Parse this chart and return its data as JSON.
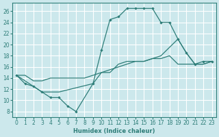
{
  "background_color": "#cce8ec",
  "grid_color": "#ffffff",
  "line_color": "#2d7d78",
  "xlabel": "Humidex (Indice chaleur)",
  "xlim": [
    -0.5,
    23.5
  ],
  "ylim": [
    7,
    27.5
  ],
  "xticks": [
    0,
    1,
    2,
    3,
    4,
    5,
    6,
    7,
    8,
    9,
    10,
    11,
    12,
    13,
    14,
    15,
    16,
    17,
    18,
    19,
    20,
    21,
    22,
    23
  ],
  "yticks": [
    8,
    10,
    12,
    14,
    16,
    18,
    20,
    22,
    24,
    26
  ],
  "line1_x": [
    0,
    1,
    2,
    3,
    4,
    5,
    6,
    7,
    9,
    10,
    11,
    12,
    13,
    14,
    15,
    16,
    17,
    18,
    19,
    20,
    21,
    22,
    23
  ],
  "line1_y": [
    14.5,
    13.0,
    12.5,
    11.5,
    10.5,
    10.5,
    9.0,
    8.0,
    13.0,
    19.0,
    24.5,
    25.0,
    26.5,
    26.5,
    26.5,
    26.5,
    24.0,
    24.0,
    21.0,
    18.5,
    16.5,
    17.0,
    17.0
  ],
  "line2_x": [
    0,
    1,
    2,
    3,
    4,
    5,
    6,
    7,
    8,
    9,
    10,
    11,
    12,
    13,
    14,
    15,
    16,
    17,
    18,
    19,
    20,
    21,
    22,
    23
  ],
  "line2_y": [
    14.5,
    14.5,
    13.5,
    13.5,
    14.0,
    14.0,
    14.0,
    14.0,
    14.0,
    14.5,
    15.0,
    15.5,
    16.0,
    16.5,
    17.0,
    17.0,
    17.5,
    17.5,
    18.0,
    16.5,
    16.5,
    16.5,
    16.5,
    17.0
  ],
  "line3_x": [
    0,
    2,
    3,
    4,
    5,
    9,
    10,
    11,
    12,
    13,
    14,
    15,
    16,
    17,
    19,
    20,
    21,
    22,
    23
  ],
  "line3_y": [
    14.5,
    12.5,
    11.5,
    11.5,
    11.5,
    13.0,
    15.0,
    15.0,
    16.5,
    17.0,
    17.0,
    17.0,
    17.5,
    18.0,
    21.0,
    18.5,
    16.5,
    16.5,
    17.0
  ]
}
